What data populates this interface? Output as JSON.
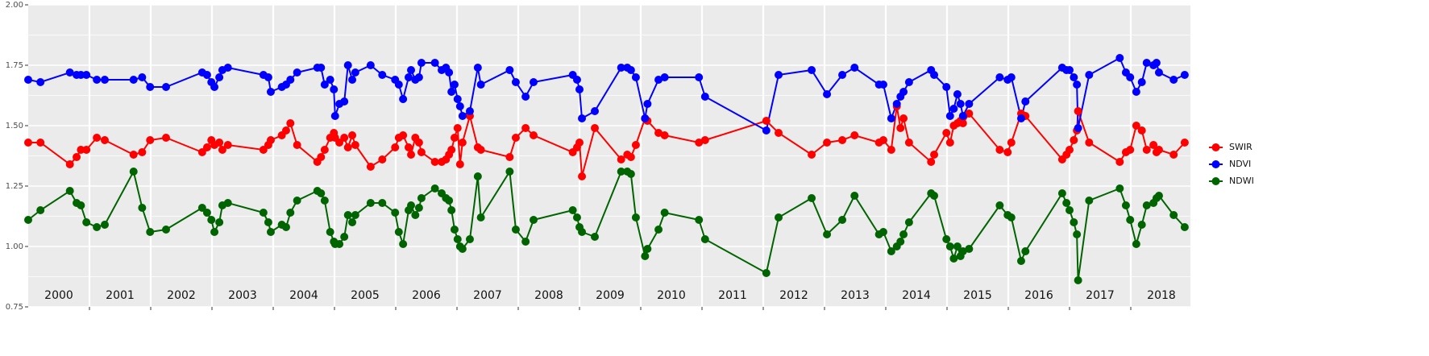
{
  "chart_data": {
    "type": "line",
    "x": [
      2000,
      2000.2,
      2000.68,
      2000.79,
      2000.86,
      2000.95,
      2001.12,
      2001.25,
      2001.72,
      2001.86,
      2001.99,
      2002.25,
      2002.84,
      2002.92,
      2002.99,
      2003.04,
      2003.12,
      2003.17,
      2003.26,
      2003.84,
      2003.92,
      2003.96,
      2004.14,
      2004.21,
      2004.28,
      2004.39,
      2004.72,
      2004.78,
      2004.84,
      2004.93,
      2004.99,
      2005.01,
      2005.08,
      2005.16,
      2005.22,
      2005.29,
      2005.34,
      2005.59,
      2005.78,
      2005.99,
      2006.05,
      2006.12,
      2006.21,
      2006.25,
      2006.32,
      2006.38,
      2006.42,
      2006.64,
      2006.75,
      2006.82,
      2006.87,
      2006.91,
      2006.96,
      2007.01,
      2007.05,
      2007.09,
      2007.21,
      2007.34,
      2007.39,
      2007.86,
      2007.96,
      2008.12,
      2008.25,
      2008.89,
      2008.96,
      2009.0,
      2009.04,
      2009.25,
      2009.68,
      2009.78,
      2009.84,
      2009.92,
      2010.07,
      2010.11,
      2010.29,
      2010.39,
      2010.95,
      2011.05,
      2012.05,
      2012.25,
      2012.79,
      2013.04,
      2013.29,
      2013.49,
      2013.89,
      2013.96,
      2014.09,
      2014.18,
      2014.24,
      2014.29,
      2014.38,
      2014.74,
      2014.79,
      2014.99,
      2015.05,
      2015.11,
      2015.17,
      2015.22,
      2015.26,
      2015.36,
      2015.86,
      2015.99,
      2016.05,
      2016.21,
      2016.28,
      2016.88,
      2016.95,
      2017.0,
      2017.07,
      2017.12,
      2017.14,
      2017.32,
      2017.82,
      2017.92,
      2017.99,
      2018.09,
      2018.18,
      2018.26,
      2018.37,
      2018.42,
      2018.46,
      2018.7,
      2018.88
    ],
    "series": [
      {
        "name": "SWIR",
        "color": "#ff0000",
        "values": [
          1.43,
          1.43,
          1.34,
          1.37,
          1.4,
          1.4,
          1.45,
          1.44,
          1.38,
          1.39,
          1.44,
          1.45,
          1.39,
          1.41,
          1.44,
          1.42,
          1.43,
          1.4,
          1.42,
          1.4,
          1.42,
          1.44,
          1.46,
          1.48,
          1.51,
          1.42,
          1.35,
          1.37,
          1.4,
          1.45,
          1.47,
          1.45,
          1.43,
          1.45,
          1.41,
          1.46,
          1.42,
          1.33,
          1.36,
          1.41,
          1.45,
          1.46,
          1.41,
          1.38,
          1.45,
          1.43,
          1.39,
          1.35,
          1.35,
          1.36,
          1.38,
          1.4,
          1.45,
          1.49,
          1.34,
          1.43,
          1.54,
          1.41,
          1.4,
          1.37,
          1.45,
          1.49,
          1.46,
          1.39,
          1.41,
          1.43,
          1.29,
          1.49,
          1.36,
          1.38,
          1.37,
          1.42,
          1.53,
          1.52,
          1.47,
          1.46,
          1.43,
          1.44,
          1.52,
          1.47,
          1.38,
          1.43,
          1.44,
          1.46,
          1.43,
          1.44,
          1.4,
          1.58,
          1.49,
          1.53,
          1.43,
          1.35,
          1.38,
          1.47,
          1.43,
          1.5,
          1.51,
          1.52,
          1.51,
          1.55,
          1.4,
          1.39,
          1.43,
          1.55,
          1.54,
          1.36,
          1.38,
          1.4,
          1.44,
          1.48,
          1.56,
          1.43,
          1.35,
          1.39,
          1.4,
          1.5,
          1.48,
          1.4,
          1.42,
          1.39,
          1.4,
          1.38,
          1.43
        ]
      },
      {
        "name": "NDVI",
        "color": "#0000ff",
        "values": [
          1.69,
          1.68,
          1.72,
          1.71,
          1.71,
          1.71,
          1.69,
          1.69,
          1.69,
          1.7,
          1.66,
          1.66,
          1.72,
          1.71,
          1.68,
          1.66,
          1.7,
          1.73,
          1.74,
          1.71,
          1.7,
          1.64,
          1.66,
          1.67,
          1.69,
          1.72,
          1.74,
          1.74,
          1.67,
          1.69,
          1.65,
          1.54,
          1.59,
          1.6,
          1.75,
          1.69,
          1.72,
          1.75,
          1.71,
          1.69,
          1.67,
          1.61,
          1.7,
          1.73,
          1.69,
          1.7,
          1.76,
          1.76,
          1.73,
          1.74,
          1.72,
          1.64,
          1.67,
          1.61,
          1.58,
          1.54,
          1.56,
          1.74,
          1.67,
          1.73,
          1.68,
          1.62,
          1.68,
          1.71,
          1.69,
          1.65,
          1.53,
          1.56,
          1.74,
          1.74,
          1.73,
          1.7,
          1.53,
          1.59,
          1.69,
          1.7,
          1.7,
          1.62,
          1.48,
          1.71,
          1.73,
          1.63,
          1.71,
          1.74,
          1.67,
          1.67,
          1.53,
          1.59,
          1.62,
          1.64,
          1.68,
          1.73,
          1.71,
          1.66,
          1.54,
          1.57,
          1.63,
          1.59,
          1.54,
          1.59,
          1.7,
          1.69,
          1.7,
          1.53,
          1.6,
          1.74,
          1.73,
          1.73,
          1.7,
          1.67,
          1.49,
          1.71,
          1.78,
          1.72,
          1.7,
          1.64,
          1.68,
          1.76,
          1.75,
          1.76,
          1.72,
          1.69,
          1.71
        ]
      },
      {
        "name": "NDWI",
        "color": "#006400",
        "values": [
          1.11,
          1.15,
          1.23,
          1.18,
          1.17,
          1.1,
          1.08,
          1.09,
          1.31,
          1.16,
          1.06,
          1.07,
          1.16,
          1.14,
          1.11,
          1.06,
          1.1,
          1.17,
          1.18,
          1.14,
          1.1,
          1.06,
          1.09,
          1.08,
          1.14,
          1.19,
          1.23,
          1.22,
          1.19,
          1.06,
          1.02,
          1.01,
          1.01,
          1.04,
          1.13,
          1.1,
          1.13,
          1.18,
          1.18,
          1.14,
          1.06,
          1.01,
          1.15,
          1.17,
          1.13,
          1.16,
          1.2,
          1.24,
          1.22,
          1.2,
          1.19,
          1.15,
          1.07,
          1.03,
          1.0,
          0.99,
          1.03,
          1.29,
          1.12,
          1.31,
          1.07,
          1.02,
          1.11,
          1.15,
          1.12,
          1.08,
          1.06,
          1.04,
          1.31,
          1.31,
          1.3,
          1.12,
          0.96,
          0.99,
          1.07,
          1.14,
          1.11,
          1.03,
          0.89,
          1.12,
          1.2,
          1.05,
          1.11,
          1.21,
          1.05,
          1.06,
          0.98,
          1.0,
          1.02,
          1.05,
          1.1,
          1.22,
          1.21,
          1.03,
          1.0,
          0.95,
          1.0,
          0.96,
          0.98,
          0.99,
          1.17,
          1.13,
          1.12,
          0.94,
          0.98,
          1.22,
          1.18,
          1.15,
          1.1,
          1.05,
          0.86,
          1.19,
          1.24,
          1.17,
          1.11,
          1.01,
          1.09,
          1.17,
          1.18,
          1.2,
          1.21,
          1.13,
          1.08
        ]
      }
    ],
    "xlim": [
      2000,
      2019
    ],
    "xticks": [
      2001,
      2002,
      2003,
      2004,
      2005,
      2006,
      2007,
      2008,
      2009,
      2010,
      2011,
      2012,
      2013,
      2014,
      2015,
      2016,
      2017,
      2018
    ],
    "ylim": [
      0.75,
      2.0
    ],
    "yticks": [
      {
        "value": 0.75,
        "label": "0.75"
      },
      {
        "value": 1.0,
        "label": "1.00"
      },
      {
        "value": 1.25,
        "label": "1.25"
      },
      {
        "value": 1.5,
        "label": "1.50"
      },
      {
        "value": 1.75,
        "label": "1.75"
      },
      {
        "value": 2.0,
        "label": "2.00"
      }
    ],
    "yticks_minor": [
      0.875,
      1.125,
      1.375,
      1.625,
      1.875
    ],
    "grid": true,
    "legend": "right",
    "annotations": [
      {
        "text": "2000",
        "x": 2000.5
      },
      {
        "text": "2001",
        "x": 2001.5
      },
      {
        "text": "2002",
        "x": 2002.5
      },
      {
        "text": "2003",
        "x": 2003.5
      },
      {
        "text": "2004",
        "x": 2004.5
      },
      {
        "text": "2005",
        "x": 2005.5
      },
      {
        "text": "2006",
        "x": 2006.5
      },
      {
        "text": "2007",
        "x": 2007.5
      },
      {
        "text": "2008",
        "x": 2008.5
      },
      {
        "text": "2009",
        "x": 2009.5
      },
      {
        "text": "2010",
        "x": 2010.5
      },
      {
        "text": "2011",
        "x": 2011.5
      },
      {
        "text": "2012",
        "x": 2012.5
      },
      {
        "text": "2013",
        "x": 2013.5
      },
      {
        "text": "2014",
        "x": 2014.5
      },
      {
        "text": "2015",
        "x": 2015.5
      },
      {
        "text": "2016",
        "x": 2016.5
      },
      {
        "text": "2017",
        "x": 2017.5
      },
      {
        "text": "2018",
        "x": 2018.5
      }
    ]
  }
}
